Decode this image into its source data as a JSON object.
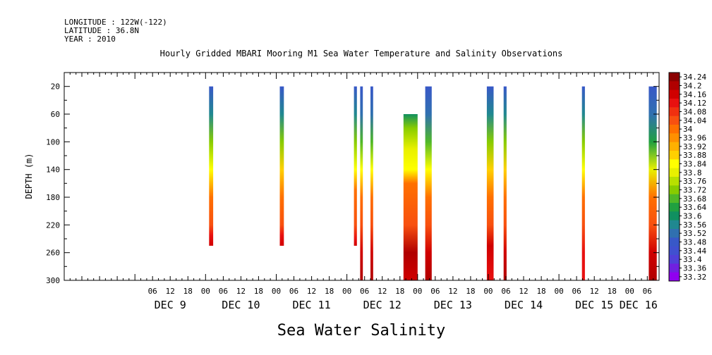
{
  "header": {
    "longitude": "LONGITUDE : 122W(-122)",
    "latitude": "LATITUDE : 36.8N",
    "year": "YEAR : 2010"
  },
  "chart_data": {
    "type": "heatmap",
    "title": "Hourly Gridded MBARI Mooring M1 Sea Water Temperature and Salinity Observations",
    "xlabel": "",
    "ylabel": "DEPTH (m)",
    "variable_label": "Sea Water Salinity",
    "x_start": "DEC 8 00:00",
    "x_unit": "hours",
    "xlim": [
      0,
      202
    ],
    "ylim": [
      0,
      300
    ],
    "y_inverted": true,
    "y_ticks": [
      20,
      60,
      100,
      140,
      180,
      220,
      260,
      300
    ],
    "x_hour_ticks": [
      {
        "h": 30,
        "label": "06"
      },
      {
        "h": 36,
        "label": "12"
      },
      {
        "h": 42,
        "label": "18"
      },
      {
        "h": 48,
        "label": "00"
      },
      {
        "h": 54,
        "label": "06"
      },
      {
        "h": 60,
        "label": "12"
      },
      {
        "h": 66,
        "label": "18"
      },
      {
        "h": 72,
        "label": "00"
      },
      {
        "h": 78,
        "label": "06"
      },
      {
        "h": 84,
        "label": "12"
      },
      {
        "h": 90,
        "label": "18"
      },
      {
        "h": 96,
        "label": "00"
      },
      {
        "h": 102,
        "label": "06"
      },
      {
        "h": 108,
        "label": "12"
      },
      {
        "h": 114,
        "label": "18"
      },
      {
        "h": 120,
        "label": "00"
      },
      {
        "h": 126,
        "label": "06"
      },
      {
        "h": 132,
        "label": "12"
      },
      {
        "h": 138,
        "label": "18"
      },
      {
        "h": 144,
        "label": "00"
      },
      {
        "h": 150,
        "label": "06"
      },
      {
        "h": 156,
        "label": "12"
      },
      {
        "h": 162,
        "label": "18"
      },
      {
        "h": 168,
        "label": "00"
      },
      {
        "h": 174,
        "label": "06"
      },
      {
        "h": 180,
        "label": "12"
      },
      {
        "h": 186,
        "label": "18"
      },
      {
        "h": 192,
        "label": "00"
      },
      {
        "h": 198,
        "label": "06"
      }
    ],
    "x_day_labels": [
      {
        "h": 36,
        "label": "DEC  9"
      },
      {
        "h": 60,
        "label": "DEC 10"
      },
      {
        "h": 84,
        "label": "DEC 11"
      },
      {
        "h": 108,
        "label": "DEC 12"
      },
      {
        "h": 132,
        "label": "DEC 13"
      },
      {
        "h": 156,
        "label": "DEC 14"
      },
      {
        "h": 180,
        "label": "DEC 15"
      },
      {
        "h": 195,
        "label": "DEC 16"
      }
    ],
    "colorbar": {
      "labels": [
        "34.24",
        "34.2",
        "34.16",
        "34.12",
        "34.08",
        "34.04",
        "34",
        "33.96",
        "33.92",
        "33.88",
        "33.84",
        "33.8",
        "33.76",
        "33.72",
        "33.68",
        "33.64",
        "33.6",
        "33.56",
        "33.52",
        "33.48",
        "33.44",
        "33.4",
        "33.36",
        "33.32"
      ],
      "colors": [
        "#8b0000",
        "#b00000",
        "#d00000",
        "#e81010",
        "#f03010",
        "#f85010",
        "#ff7000",
        "#ff9000",
        "#ffb000",
        "#ffd000",
        "#ffff00",
        "#e8f000",
        "#b8e000",
        "#88cc00",
        "#50b828",
        "#20a040",
        "#109060",
        "#208890",
        "#3070b0",
        "#3858c8",
        "#4050d0",
        "#5040d8",
        "#7020e0",
        "#9000f0"
      ]
    },
    "columns": [
      {
        "x0": 49.2,
        "x1": 50.6,
        "depth_top": 20,
        "depth_bottom": 250,
        "stops": [
          [
            20,
            33.48
          ],
          [
            60,
            33.56
          ],
          [
            100,
            33.72
          ],
          [
            140,
            33.86
          ],
          [
            180,
            34.0
          ],
          [
            220,
            34.04
          ],
          [
            235,
            34.12
          ],
          [
            250,
            34.16
          ]
        ]
      },
      {
        "x0": 73.2,
        "x1": 74.6,
        "depth_top": 20,
        "depth_bottom": 250,
        "stops": [
          [
            20,
            33.48
          ],
          [
            60,
            33.56
          ],
          [
            100,
            33.72
          ],
          [
            140,
            33.88
          ],
          [
            180,
            34.0
          ],
          [
            220,
            34.04
          ],
          [
            235,
            34.12
          ],
          [
            250,
            34.16
          ]
        ]
      },
      {
        "x0": 98.4,
        "x1": 99.4,
        "depth_top": 20,
        "depth_bottom": 250,
        "stops": [
          [
            20,
            33.48
          ],
          [
            60,
            33.56
          ],
          [
            100,
            33.72
          ],
          [
            140,
            33.86
          ],
          [
            170,
            34.0
          ],
          [
            220,
            34.04
          ],
          [
            240,
            34.12
          ],
          [
            250,
            34.16
          ]
        ]
      },
      {
        "x0": 100.5,
        "x1": 101.4,
        "depth_top": 20,
        "depth_bottom": 300,
        "stops": [
          [
            20,
            33.48
          ],
          [
            60,
            33.52
          ],
          [
            100,
            33.68
          ],
          [
            140,
            33.84
          ],
          [
            180,
            34.0
          ],
          [
            220,
            34.04
          ],
          [
            260,
            34.16
          ],
          [
            300,
            34.2
          ]
        ]
      },
      {
        "x0": 104.0,
        "x1": 104.9,
        "depth_top": 20,
        "depth_bottom": 300,
        "stops": [
          [
            20,
            33.48
          ],
          [
            60,
            33.52
          ],
          [
            100,
            33.68
          ],
          [
            140,
            33.84
          ],
          [
            180,
            34.0
          ],
          [
            220,
            34.04
          ],
          [
            260,
            34.16
          ],
          [
            300,
            34.2
          ]
        ]
      },
      {
        "x0": 115.2,
        "x1": 120.0,
        "depth_top": 60,
        "depth_bottom": 300,
        "stops": [
          [
            60,
            33.6
          ],
          [
            80,
            33.7
          ],
          [
            110,
            33.78
          ],
          [
            140,
            33.86
          ],
          [
            160,
            34.0
          ],
          [
            220,
            34.04
          ],
          [
            260,
            34.2
          ],
          [
            300,
            34.16
          ]
        ]
      },
      {
        "x0": 122.6,
        "x1": 124.8,
        "depth_top": 20,
        "depth_bottom": 300,
        "stops": [
          [
            20,
            33.48
          ],
          [
            60,
            33.52
          ],
          [
            100,
            33.68
          ],
          [
            140,
            33.84
          ],
          [
            180,
            34.0
          ],
          [
            220,
            34.04
          ],
          [
            260,
            34.16
          ],
          [
            300,
            34.2
          ]
        ]
      },
      {
        "x0": 143.5,
        "x1": 145.8,
        "depth_top": 20,
        "depth_bottom": 300,
        "stops": [
          [
            20,
            33.48
          ],
          [
            60,
            33.56
          ],
          [
            100,
            33.72
          ],
          [
            140,
            33.88
          ],
          [
            180,
            34.0
          ],
          [
            220,
            34.04
          ],
          [
            250,
            34.16
          ],
          [
            300,
            34.12
          ]
        ]
      },
      {
        "x0": 149.2,
        "x1": 150.2,
        "depth_top": 20,
        "depth_bottom": 300,
        "stops": [
          [
            20,
            33.48
          ],
          [
            60,
            33.56
          ],
          [
            100,
            33.72
          ],
          [
            140,
            33.88
          ],
          [
            180,
            34.0
          ],
          [
            220,
            34.04
          ],
          [
            260,
            34.16
          ],
          [
            300,
            34.2
          ]
        ]
      },
      {
        "x0": 175.8,
        "x1": 176.8,
        "depth_top": 20,
        "depth_bottom": 300,
        "stops": [
          [
            20,
            33.48
          ],
          [
            60,
            33.56
          ],
          [
            100,
            33.72
          ],
          [
            140,
            33.86
          ],
          [
            180,
            34.0
          ],
          [
            220,
            34.04
          ],
          [
            260,
            34.12
          ],
          [
            300,
            34.12
          ]
        ]
      },
      {
        "x0": 198.5,
        "x1": 201.2,
        "depth_top": 20,
        "depth_bottom": 300,
        "stops": [
          [
            20,
            33.48
          ],
          [
            60,
            33.52
          ],
          [
            100,
            33.64
          ],
          [
            140,
            33.8
          ],
          [
            180,
            34.0
          ],
          [
            220,
            34.04
          ],
          [
            260,
            34.16
          ],
          [
            300,
            34.2
          ]
        ]
      }
    ]
  }
}
